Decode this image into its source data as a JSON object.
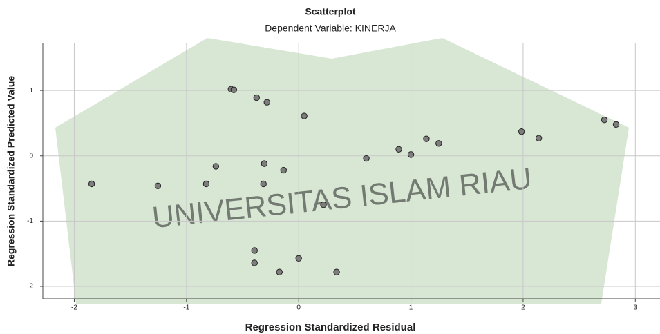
{
  "chart_data": {
    "type": "scatter",
    "title": "Scatterplot",
    "subtitle": "Dependent Variable: KINERJA",
    "x_label": "Regression Standardized Residual",
    "y_label": "Regression Standardized Predicted Value",
    "watermark": "UNIVERSITAS ISLAM RIAU",
    "color": "#7d7d7d",
    "grid": true,
    "xlim": [
      -2.28,
      3.22
    ],
    "ylim": [
      -2.19,
      1.72
    ],
    "xticks": [
      -2,
      -1,
      0,
      1,
      2,
      3
    ],
    "yticks": [
      -2,
      -1,
      0,
      1
    ],
    "x": [
      -1.845,
      -1.255,
      -0.824,
      -0.738,
      -0.603,
      -0.578,
      -0.375,
      -0.283,
      -0.307,
      -0.314,
      -0.135,
      0.049,
      -0.394,
      -0.394,
      -0.172,
      0.0,
      0.221,
      0.338,
      0.603,
      0.892,
      1.0,
      1.138,
      1.248,
      1.986,
      2.14,
      2.724,
      2.829
    ],
    "y": [
      -0.43,
      -0.46,
      -0.43,
      -0.16,
      1.02,
      1.01,
      0.89,
      0.82,
      -0.12,
      -0.43,
      -0.22,
      0.61,
      -1.45,
      -1.64,
      -1.78,
      -1.57,
      -0.75,
      -1.78,
      -0.04,
      0.1,
      0.02,
      0.26,
      0.19,
      0.37,
      0.27,
      0.55,
      0.48
    ]
  }
}
